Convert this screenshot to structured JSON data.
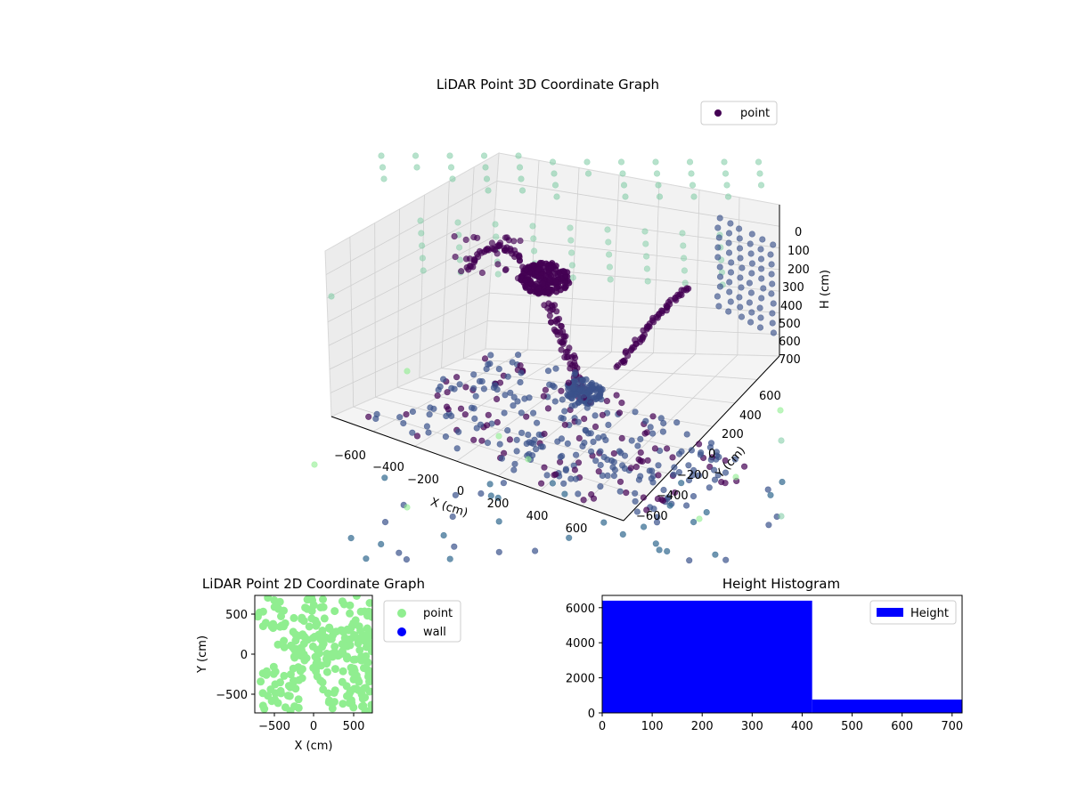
{
  "colors": {
    "point3d_dark": "#440154",
    "point3d_mid": "#3b528b",
    "point3d_teal": "#7ccba2",
    "point3d_light": "#90ee90",
    "point2d": "#90ee90",
    "wall": "#0000ff",
    "hist": "#0000ff",
    "pane_face": "#f2f2f2",
    "grid": "#cfcfcf"
  },
  "chart_data": [
    {
      "type": "scatter",
      "id": "scatter3d",
      "title": "LiDAR Point 3D Coordinate Graph",
      "xlabel": "X (cm)",
      "ylabel": "Y (cm)",
      "zlabel": "H (cm)",
      "x_ticks": [
        "−600",
        "−400",
        "−200",
        "0",
        "200",
        "400",
        "600"
      ],
      "y_ticks": [
        "600",
        "400",
        "200",
        "0",
        "−200",
        "−400",
        "−600"
      ],
      "z_ticks": [
        "0",
        "100",
        "200",
        "300",
        "400",
        "500",
        "600",
        "700"
      ],
      "legend": {
        "entries": [
          "point"
        ],
        "placement": "top-right"
      },
      "xlim": [
        -700,
        700
      ],
      "ylim": [
        -700,
        700
      ],
      "zlim": [
        0,
        700
      ],
      "grid": true
    },
    {
      "type": "scatter",
      "id": "scatter2d",
      "title": "LiDAR Point 2D Coordinate Graph",
      "xlabel": "X (cm)",
      "ylabel": "Y (cm)",
      "x_ticks": [
        "−500",
        "0",
        "500"
      ],
      "y_ticks": [
        "500",
        "0",
        "−500"
      ],
      "xlim": [
        -720,
        720
      ],
      "ylim": [
        -720,
        720
      ],
      "legend": {
        "entries": [
          "point",
          "wall"
        ],
        "placement": "outside-right"
      },
      "series": [
        {
          "name": "point"
        },
        {
          "name": "wall"
        }
      ]
    },
    {
      "type": "bar",
      "id": "histogram",
      "title": "Height Histogram",
      "bins": [
        [
          0,
          420
        ],
        [
          420,
          720
        ]
      ],
      "values": [
        6400,
        760
      ],
      "x_ticks": [
        "0",
        "100",
        "200",
        "300",
        "400",
        "500",
        "600",
        "700"
      ],
      "y_ticks": [
        "0",
        "2000",
        "4000",
        "6000"
      ],
      "xlim": [
        0,
        720
      ],
      "ylim": [
        0,
        6700
      ],
      "legend": {
        "entries": [
          "Height"
        ],
        "placement": "top-right"
      },
      "series": [
        {
          "name": "Height"
        }
      ]
    }
  ]
}
